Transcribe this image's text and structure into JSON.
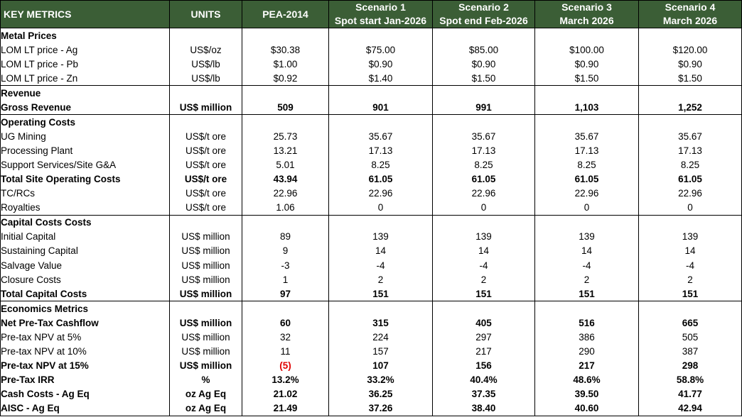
{
  "header": {
    "key_metrics": "KEY METRICS",
    "units": "UNITS",
    "pea": "PEA-2014",
    "s1_line1": "Scenario 1",
    "s1_line2": "Spot start Jan-2026",
    "s2_line1": "Scenario 2",
    "s2_line2": "Spot end Feb-2026",
    "s3_line1": "Scenario 3",
    "s3_line2": "March 2026",
    "s4_line1": "Scenario 4",
    "s4_line2": "March 2026"
  },
  "sections": [
    {
      "title": "Metal Prices",
      "rows": [
        {
          "label": "LOM LT price - Ag",
          "unit": "US$/oz",
          "values": [
            "$30.38",
            "$75.00",
            "$85.00",
            "$100.00",
            "$120.00"
          ],
          "bold": false
        },
        {
          "label": "LOM LT price - Pb",
          "unit": "US$/lb",
          "values": [
            "$1.00",
            "$0.90",
            "$0.90",
            "$0.90",
            "$0.90"
          ],
          "bold": false
        },
        {
          "label": "LOM LT price - Zn",
          "unit": "US$/lb",
          "values": [
            "$0.92",
            "$1.40",
            "$1.50",
            "$1.50",
            "$1.50"
          ],
          "bold": false
        }
      ]
    },
    {
      "title": "Revenue",
      "rows": [
        {
          "label": "Gross Revenue",
          "unit": "US$ million",
          "values": [
            "509",
            "901",
            "991",
            "1,103",
            "1,252"
          ],
          "bold": true
        }
      ]
    },
    {
      "title": "Operating Costs",
      "rows": [
        {
          "label": "UG Mining",
          "unit": "US$/t ore",
          "values": [
            "25.73",
            "35.67",
            "35.67",
            "35.67",
            "35.67"
          ],
          "bold": false
        },
        {
          "label": "Processing Plant",
          "unit": "US$/t ore",
          "values": [
            "13.21",
            "17.13",
            "17.13",
            "17.13",
            "17.13"
          ],
          "bold": false
        },
        {
          "label": "Support Services/Site G&A",
          "unit": "US$/t ore",
          "values": [
            "5.01",
            "8.25",
            "8.25",
            "8.25",
            "8.25"
          ],
          "bold": false
        },
        {
          "label": "Total Site Operating Costs",
          "unit": "US$/t ore",
          "values": [
            "43.94",
            "61.05",
            "61.05",
            "61.05",
            "61.05"
          ],
          "bold": true
        },
        {
          "label": "TC/RCs",
          "unit": "US$/t ore",
          "values": [
            "22.96",
            "22.96",
            "22.96",
            "22.96",
            "22.96"
          ],
          "bold": false
        },
        {
          "label": "Royalties",
          "unit": "US$/t ore",
          "values": [
            "1.06",
            "0",
            "0",
            "0",
            "0"
          ],
          "bold": false
        }
      ]
    },
    {
      "title": "Capital Costs Costs",
      "rows": [
        {
          "label": "Initial Capital",
          "unit": "US$ million",
          "values": [
            "89",
            "139",
            "139",
            "139",
            "139"
          ],
          "bold": false
        },
        {
          "label": "Sustaining Capital",
          "unit": "US$ million",
          "values": [
            "9",
            "14",
            "14",
            "14",
            "14"
          ],
          "bold": false
        },
        {
          "label": "Salvage Value",
          "unit": "US$ million",
          "values": [
            "-3",
            "-4",
            "-4",
            "-4",
            "-4"
          ],
          "bold": false
        },
        {
          "label": "Closure Costs",
          "unit": "US$ million",
          "values": [
            "1",
            "2",
            "2",
            "2",
            "2"
          ],
          "bold": false
        },
        {
          "label": "Total Capital Costs",
          "unit": "US$ million",
          "values": [
            "97",
            "151",
            "151",
            "151",
            "151"
          ],
          "bold": true
        }
      ]
    },
    {
      "title": "Economics Metrics",
      "rows": [
        {
          "label": "Net Pre-Tax Cashflow",
          "unit": "US$ million",
          "values": [
            "60",
            "315",
            "405",
            "516",
            "665"
          ],
          "bold": true
        },
        {
          "label": "Pre-tax NPV at 5%",
          "unit": "US$ million",
          "values": [
            "32",
            "224",
            "297",
            "386",
            "505"
          ],
          "bold": false
        },
        {
          "label": "Pre-tax NPV at 10%",
          "unit": "US$ million",
          "values": [
            "11",
            "157",
            "217",
            "290",
            "387"
          ],
          "bold": false
        },
        {
          "label": "Pre-tax NPV at 15%",
          "unit": "US$ million",
          "values": [
            "(5)",
            "107",
            "156",
            "217",
            "298"
          ],
          "bold": true,
          "negative_first": true
        },
        {
          "label": "Pre-Tax IRR",
          "unit": "%",
          "values": [
            "13.2%",
            "33.2%",
            "40.4%",
            "48.6%",
            "58.8%"
          ],
          "bold": true
        },
        {
          "label": "Cash Costs - Ag Eq",
          "unit": "oz Ag Eq",
          "values": [
            "21.02",
            "36.25",
            "37.35",
            "39.50",
            "41.77"
          ],
          "bold": true
        },
        {
          "label": "AISC - Ag Eq",
          "unit": "oz Ag Eq",
          "values": [
            "21.49",
            "37.26",
            "38.40",
            "40.60",
            "42.94"
          ],
          "bold": true
        }
      ]
    }
  ],
  "colors": {
    "header_bg": "#3b5e36",
    "header_text": "#ffffff",
    "negative": "#e00000"
  }
}
